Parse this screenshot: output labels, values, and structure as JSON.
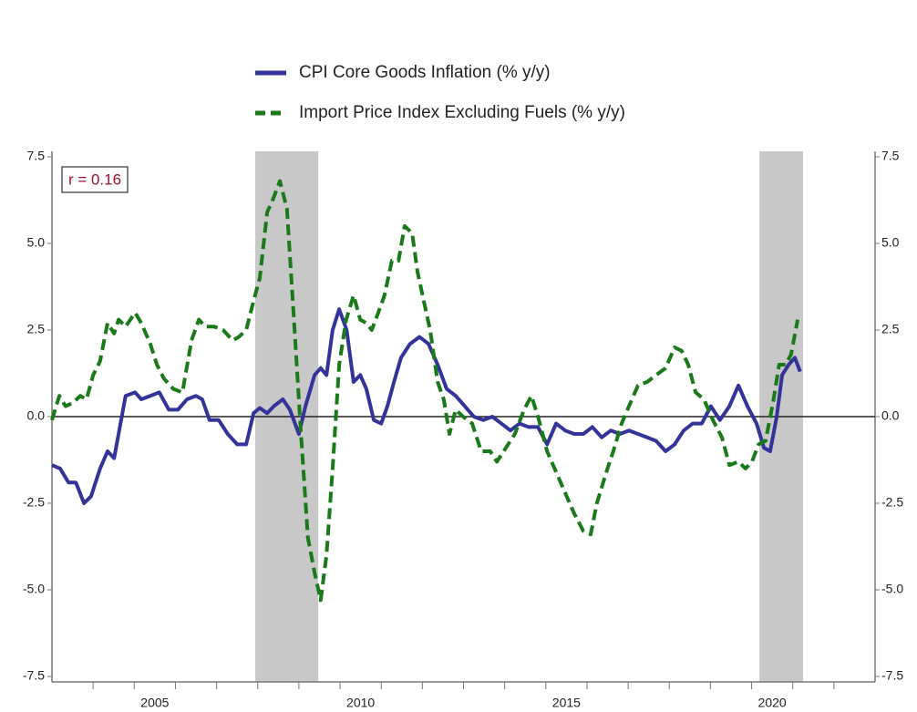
{
  "chart_data": {
    "type": "line",
    "annotation": "r = 0.16",
    "xlim": [
      2003,
      2023
    ],
    "xticks": [
      {
        "value": 2005.5,
        "label": "2005"
      },
      {
        "value": 2010.5,
        "label": "2010"
      },
      {
        "value": 2015.5,
        "label": "2015"
      },
      {
        "value": 2020.5,
        "label": "2020"
      }
    ],
    "xminor_ticks": [
      2004,
      2005,
      2006,
      2007,
      2008,
      2009,
      2010,
      2011,
      2012,
      2013,
      2014,
      2015,
      2016,
      2017,
      2018,
      2019,
      2020,
      2021,
      2022
    ],
    "ylim": [
      -7.5,
      7.5
    ],
    "yticks": [
      7.5,
      {
        "value": 5,
        "label": "5.0"
      },
      2.5,
      {
        "value": 0,
        "label": "0.0"
      },
      -2.5,
      {
        "value": -5,
        "label": "-5.0"
      },
      -7.5
    ],
    "y2lim": [
      -7.5,
      7.5
    ],
    "y2ticks": [
      7.5,
      {
        "value": 5,
        "label": "5.0"
      },
      2.5,
      {
        "value": 0,
        "label": "0.0"
      },
      -2.5,
      {
        "value": -5,
        "label": "-5.0"
      },
      -7.5
    ],
    "shaded_ranges": [
      [
        2007.94,
        2009.47
      ],
      [
        2020.19,
        2021.25
      ]
    ],
    "series": [
      {
        "name": "CPI Core Goods Inflation (% y/y)",
        "color": "#333399",
        "dashed": false,
        "x": [
          2003.0,
          2003.2,
          2003.4,
          2003.58,
          2003.78,
          2003.95,
          2004.17,
          2004.35,
          2004.51,
          2004.62,
          2004.79,
          2005.02,
          2005.17,
          2005.39,
          2005.61,
          2005.84,
          2006.06,
          2006.28,
          2006.5,
          2006.65,
          2006.83,
          2007.05,
          2007.27,
          2007.5,
          2007.72,
          2007.9,
          2008.05,
          2008.23,
          2008.39,
          2008.61,
          2008.78,
          2009.0,
          2009.16,
          2009.38,
          2009.53,
          2009.67,
          2009.82,
          2009.98,
          2010.16,
          2010.33,
          2010.49,
          2010.64,
          2010.82,
          2011.0,
          2011.15,
          2011.31,
          2011.48,
          2011.7,
          2011.93,
          2012.15,
          2012.37,
          2012.59,
          2012.81,
          2013.03,
          2013.25,
          2013.48,
          2013.7,
          2013.92,
          2014.14,
          2014.36,
          2014.58,
          2014.81,
          2015.03,
          2015.25,
          2015.47,
          2015.69,
          2015.91,
          2016.13,
          2016.36,
          2016.58,
          2016.8,
          2017.02,
          2017.24,
          2017.46,
          2017.68,
          2017.91,
          2018.13,
          2018.35,
          2018.57,
          2018.79,
          2019.01,
          2019.23,
          2019.46,
          2019.68,
          2019.9,
          2020.12,
          2020.3,
          2020.45,
          2020.61,
          2020.74,
          2020.9,
          2021.05,
          2021.18
        ],
        "values": [
          -1.4,
          -1.5,
          -1.9,
          -1.9,
          -2.5,
          -2.3,
          -1.5,
          -1.0,
          -1.2,
          -0.5,
          0.6,
          0.7,
          0.5,
          0.6,
          0.7,
          0.2,
          0.2,
          0.5,
          0.6,
          0.5,
          -0.1,
          -0.1,
          -0.5,
          -0.8,
          -0.8,
          0.1,
          0.25,
          0.1,
          0.3,
          0.5,
          0.2,
          -0.5,
          0.3,
          1.2,
          1.4,
          1.2,
          2.5,
          3.1,
          2.5,
          1.0,
          1.2,
          0.8,
          -0.1,
          -0.2,
          0.3,
          1.0,
          1.7,
          2.1,
          2.3,
          2.1,
          1.5,
          0.8,
          0.6,
          0.3,
          0.0,
          -0.1,
          0.0,
          -0.2,
          -0.4,
          -0.2,
          -0.3,
          -0.3,
          -0.8,
          -0.2,
          -0.4,
          -0.5,
          -0.5,
          -0.3,
          -0.6,
          -0.4,
          -0.5,
          -0.4,
          -0.5,
          -0.6,
          -0.7,
          -1.0,
          -0.8,
          -0.4,
          -0.2,
          -0.2,
          0.3,
          -0.1,
          0.3,
          0.9,
          0.3,
          -0.2,
          -0.9,
          -1.0,
          0.0,
          1.2,
          1.5,
          1.7,
          1.3
        ]
      },
      {
        "name": "Import Price Index Excluding Fuels (% y/y)",
        "color": "#1a7a1a",
        "dashed": true,
        "x": [
          2003.0,
          2003.18,
          2003.33,
          2003.51,
          2003.69,
          2003.84,
          2004.0,
          2004.17,
          2004.35,
          2004.51,
          2004.62,
          2004.79,
          2005.02,
          2005.17,
          2005.39,
          2005.55,
          2005.72,
          2005.95,
          2006.17,
          2006.39,
          2006.57,
          2006.72,
          2006.94,
          2007.16,
          2007.39,
          2007.54,
          2007.72,
          2007.89,
          2008.05,
          2008.23,
          2008.38,
          2008.54,
          2008.71,
          2008.87,
          2009.05,
          2009.22,
          2009.38,
          2009.53,
          2009.67,
          2009.82,
          2009.98,
          2010.15,
          2010.33,
          2010.49,
          2010.64,
          2010.77,
          2010.93,
          2011.08,
          2011.26,
          2011.42,
          2011.57,
          2011.75,
          2011.88,
          2012.04,
          2012.19,
          2012.37,
          2012.52,
          2012.66,
          2012.81,
          2012.99,
          2013.21,
          2013.43,
          2013.65,
          2013.81,
          2014.03,
          2014.25,
          2014.47,
          2014.65,
          2014.81,
          2015.03,
          2015.25,
          2015.47,
          2015.69,
          2015.91,
          2016.09,
          2016.24,
          2016.47,
          2016.64,
          2016.84,
          2017.02,
          2017.24,
          2017.46,
          2017.68,
          2017.91,
          2018.13,
          2018.3,
          2018.46,
          2018.64,
          2018.84,
          2019.06,
          2019.28,
          2019.46,
          2019.68,
          2019.85,
          2020.01,
          2020.17,
          2020.34,
          2020.52,
          2020.67,
          2020.83,
          2020.96,
          2021.12
        ],
        "values": [
          -0.1,
          0.6,
          0.3,
          0.4,
          0.6,
          0.5,
          1.2,
          1.6,
          2.7,
          2.4,
          2.8,
          2.6,
          3.0,
          2.7,
          2.1,
          1.5,
          1.1,
          0.8,
          0.7,
          2.2,
          2.8,
          2.6,
          2.6,
          2.5,
          2.2,
          2.3,
          2.5,
          3.3,
          4.0,
          5.9,
          6.3,
          6.8,
          6.0,
          3.0,
          -0.5,
          -3.5,
          -4.5,
          -5.3,
          -4.0,
          -1.5,
          1.5,
          2.8,
          3.5,
          2.8,
          2.7,
          2.5,
          3.0,
          3.5,
          4.5,
          4.5,
          5.5,
          5.3,
          4.2,
          3.3,
          2.5,
          1.0,
          0.5,
          -0.5,
          0.2,
          0.0,
          -0.2,
          -1.0,
          -1.0,
          -1.3,
          -0.9,
          -0.5,
          0.2,
          0.6,
          0.0,
          -1.0,
          -1.6,
          -2.2,
          -2.8,
          -3.3,
          -3.4,
          -2.5,
          -1.6,
          -1.0,
          -0.2,
          0.3,
          0.9,
          1.0,
          1.2,
          1.4,
          2.0,
          1.9,
          1.5,
          0.7,
          0.5,
          -0.1,
          -0.6,
          -1.4,
          -1.3,
          -1.5,
          -1.3,
          -0.8,
          -0.7,
          0.4,
          1.5,
          1.5,
          1.8,
          2.8
        ]
      }
    ]
  }
}
